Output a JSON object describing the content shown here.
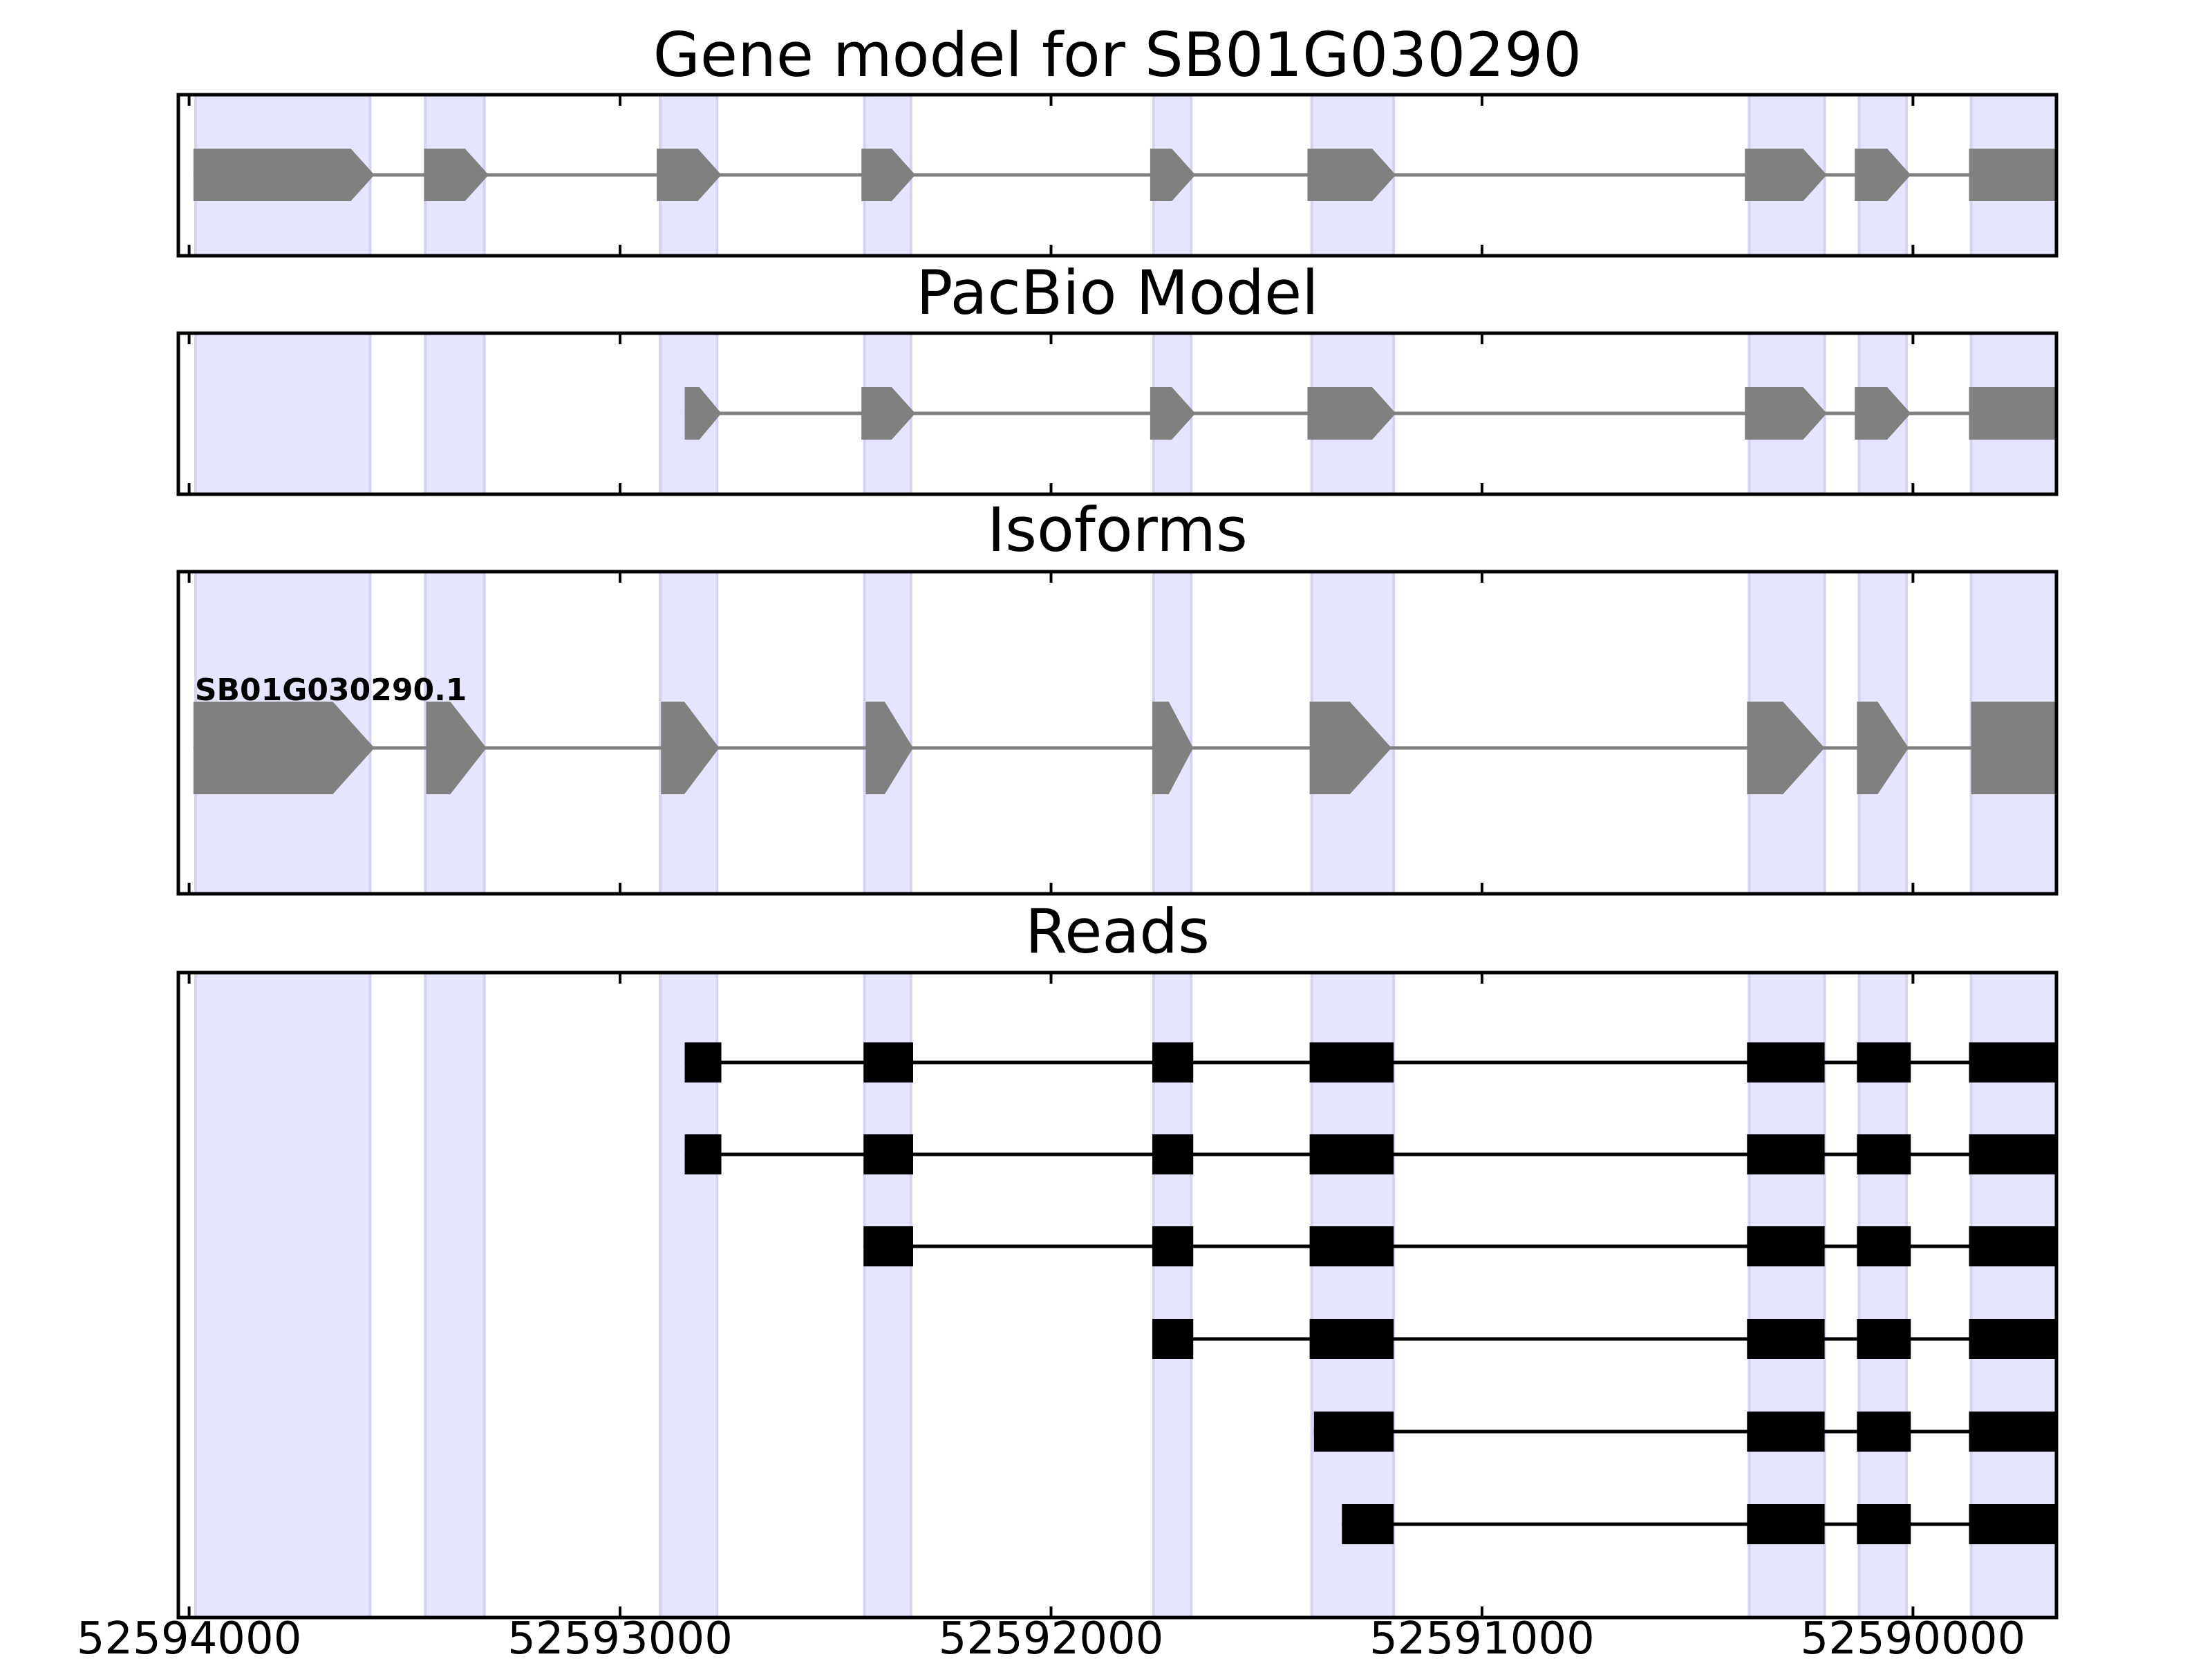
{
  "chart_data": {
    "type": "gene-track",
    "x_axis": {
      "xlim": [
        52594025,
        52589667
      ],
      "ticks": [
        52594000,
        52593000,
        52592000,
        52591000,
        52590000
      ],
      "tick_labels": [
        "52594000",
        "52593000",
        "52592000",
        "52591000",
        "52590000"
      ],
      "reversed": true
    },
    "highlight_color": "#e5e5ff",
    "exon_regions": [
      [
        52593985,
        52593580
      ],
      [
        52593452,
        52593315
      ],
      [
        52592907,
        52592775
      ],
      [
        52592433,
        52592325
      ],
      [
        52591762,
        52591675
      ],
      [
        52591395,
        52591205
      ],
      [
        52590380,
        52590205
      ],
      [
        52590125,
        52590015
      ],
      [
        52589865,
        52589390
      ]
    ],
    "panels": [
      {
        "id": "gene-model",
        "title": "Gene model for SB01G030290",
        "feature_color": "#808080",
        "transcripts": [
          {
            "label": "",
            "exons": [
              [
                52593990,
                52593570
              ],
              [
                52593455,
                52593305
              ],
              [
                52592915,
                52592765
              ],
              [
                52592440,
                52592315
              ],
              [
                52591770,
                52591665
              ],
              [
                52591405,
                52591200
              ],
              [
                52590390,
                52590200
              ],
              [
                52590135,
                52590005
              ],
              [
                52589870,
                52589375
              ]
            ]
          }
        ]
      },
      {
        "id": "pacbio-model",
        "title": "PacBio Model",
        "feature_color": "#808080",
        "transcripts": [
          {
            "label": "",
            "exons": [
              [
                52592850,
                52592765
              ],
              [
                52592440,
                52592315
              ],
              [
                52591770,
                52591665
              ],
              [
                52591405,
                52591200
              ],
              [
                52590390,
                52590200
              ],
              [
                52590135,
                52590005
              ],
              [
                52589870,
                52589310
              ]
            ]
          }
        ]
      },
      {
        "id": "isoforms",
        "title": "Isoforms",
        "feature_color": "#808080",
        "transcripts": [
          {
            "label": "SB01G030290.1",
            "exons": [
              [
                52593990,
                52593570
              ],
              [
                52593450,
                52593310
              ],
              [
                52592905,
                52592770
              ],
              [
                52592430,
                52592320
              ],
              [
                52591765,
                52591670
              ],
              [
                52591400,
                52591210
              ],
              [
                52590385,
                52590205
              ],
              [
                52590130,
                52590010
              ],
              [
                52589865,
                52589315
              ]
            ]
          }
        ]
      },
      {
        "id": "reads",
        "title": "Reads",
        "feature_color": "#000000",
        "transcripts": [
          {
            "label": "",
            "exons": [
              [
                52592850,
                52592765
              ],
              [
                52592435,
                52592320
              ],
              [
                52591765,
                52591670
              ],
              [
                52591400,
                52591205
              ],
              [
                52590385,
                52590205
              ],
              [
                52590130,
                52590005
              ],
              [
                52589870,
                52589380
              ]
            ]
          },
          {
            "label": "",
            "exons": [
              [
                52592850,
                52592765
              ],
              [
                52592435,
                52592320
              ],
              [
                52591765,
                52591670
              ],
              [
                52591400,
                52591205
              ],
              [
                52590385,
                52590205
              ],
              [
                52590130,
                52590005
              ],
              [
                52589870,
                52589380
              ]
            ]
          },
          {
            "label": "",
            "exons": [
              [
                52592435,
                52592320
              ],
              [
                52591765,
                52591670
              ],
              [
                52591400,
                52591205
              ],
              [
                52590385,
                52590205
              ],
              [
                52590130,
                52590005
              ],
              [
                52589870,
                52589355
              ]
            ]
          },
          {
            "label": "",
            "exons": [
              [
                52591765,
                52591670
              ],
              [
                52591400,
                52591205
              ],
              [
                52590385,
                52590205
              ],
              [
                52590130,
                52590005
              ],
              [
                52589870,
                52589325
              ]
            ]
          },
          {
            "label": "",
            "exons": [
              [
                52591390,
                52591205
              ],
              [
                52590385,
                52590205
              ],
              [
                52590130,
                52590005
              ],
              [
                52589870,
                52589325
              ]
            ]
          },
          {
            "label": "",
            "exons": [
              [
                52591325,
                52591205
              ],
              [
                52590385,
                52590205
              ],
              [
                52590130,
                52590005
              ],
              [
                52589870,
                52589325
              ]
            ]
          }
        ]
      }
    ]
  }
}
